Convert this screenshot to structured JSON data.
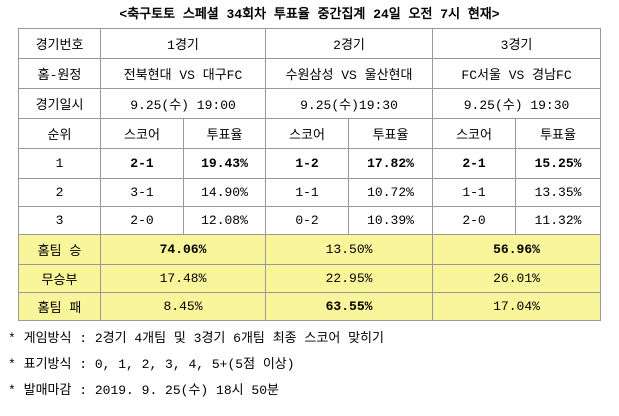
{
  "title": "<축구토토 스페셜 34회차 투표율 중간집계 24일 오전 7시 현재>",
  "table": {
    "header": [
      "경기번호",
      "1경기",
      "2경기",
      "3경기"
    ],
    "matchups": [
      "홈-원정",
      "전북현대 VS 대구FC",
      "수원삼성 VS 울산현대",
      "FC서울 VS 경남FC"
    ],
    "dates": [
      "경기일시",
      "9.25(수) 19:00",
      "9.25(수)19:30",
      "9.25(수) 19:30"
    ],
    "subheader": [
      "순위",
      "스코어",
      "투표율",
      "스코어",
      "투표율",
      "스코어",
      "투표율"
    ],
    "ranks": [
      [
        "1",
        "2-1",
        "19.43%",
        "1-2",
        "17.82%",
        "2-1",
        "15.25%"
      ],
      [
        "2",
        "3-1",
        "14.90%",
        "1-1",
        "10.72%",
        "1-1",
        "13.35%"
      ],
      [
        "3",
        "2-0",
        "12.08%",
        "0-2",
        "10.39%",
        "2-0",
        "11.32%"
      ]
    ],
    "outcomes": [
      [
        "홈팀 승",
        "74.06%",
        "13.50%",
        "56.96%"
      ],
      [
        "무승부",
        "17.48%",
        "22.95%",
        "26.01%"
      ],
      [
        "홈팀 패",
        "8.45%",
        "63.55%",
        "17.04%"
      ]
    ]
  },
  "notes": [
    "* 게임방식 : 2경기 4개팀 및 3경기 6개팀 최종 스코어 맞히기",
    "* 표기방식 : 0, 1, 2, 3, 4, 5+(5점 이상)",
    "* 발매마감 : 2019. 9. 25(수) 18시 50분"
  ]
}
